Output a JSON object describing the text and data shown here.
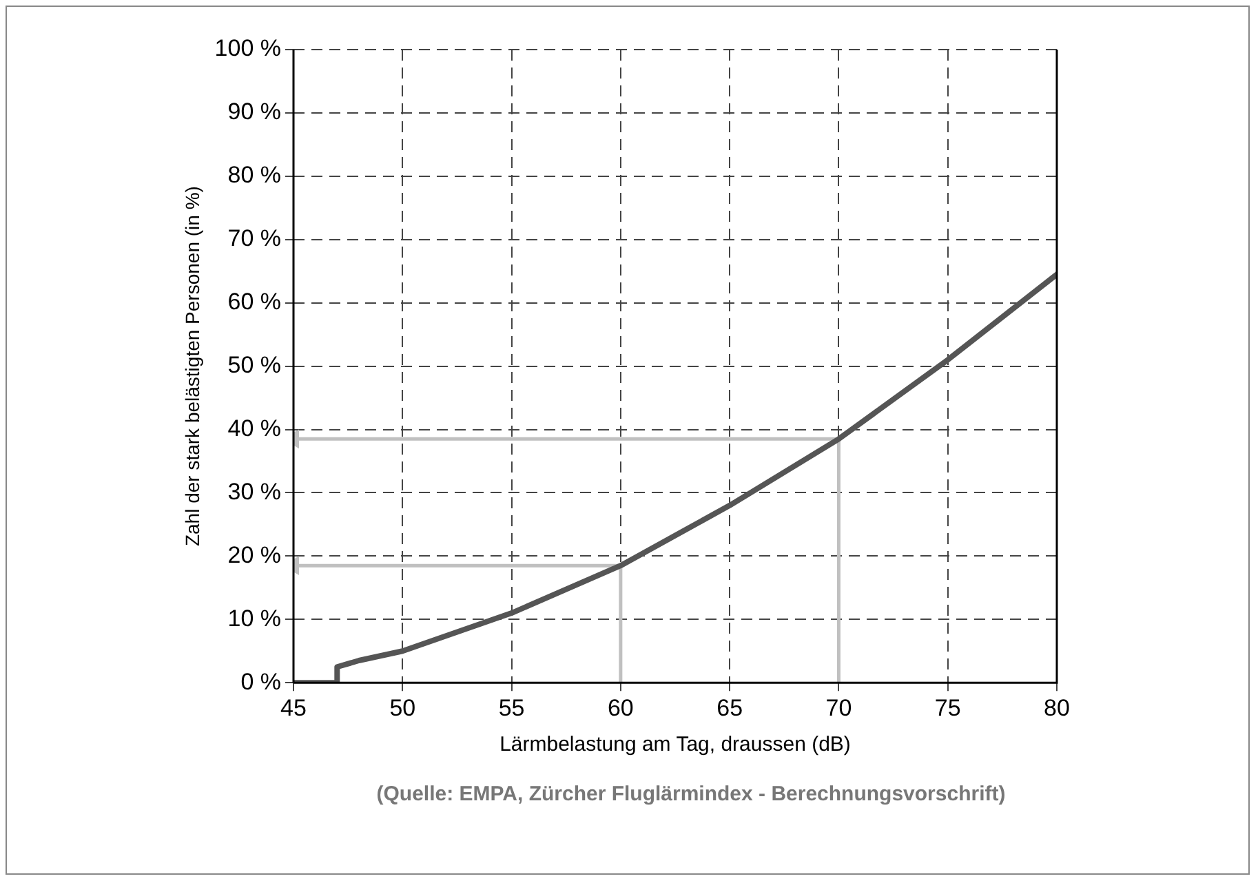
{
  "chart_data": {
    "type": "line",
    "xlabel": "Lärmbelastung am Tag, draussen (dB)",
    "ylabel": "Zahl der stark belästigten Personen (in %)",
    "annotations": [
      "(Quelle: EMPA, Zürcher Fluglärmindex - Berechnungsvorschrift)"
    ],
    "series": [
      {
        "color": "#555555",
        "x": [
          45,
          47,
          47,
          48,
          50,
          55,
          60,
          65,
          70,
          75,
          80
        ],
        "values": [
          0,
          0,
          2.5,
          3.5,
          5,
          11,
          18.5,
          28,
          38.5,
          51,
          64.5
        ]
      },
      {
        "color": "#c0c0c0",
        "x": [
          60,
          60,
          45
        ],
        "values": [
          0,
          18.5,
          18.5
        ]
      },
      {
        "color": "#c0c0c0",
        "x": [
          70,
          70,
          45
        ],
        "values": [
          0,
          38.5,
          38.5
        ]
      }
    ],
    "xlim": [
      45,
      80
    ],
    "xticks": [
      45,
      50,
      55,
      60,
      65,
      70,
      75,
      80
    ],
    "ylim": [
      0,
      100
    ],
    "yticks": [
      {
        "value": 0,
        "label": "0 %"
      },
      {
        "value": 10,
        "label": "10 %"
      },
      {
        "value": 20,
        "label": "20 %"
      },
      {
        "value": 30,
        "label": "30 %"
      },
      {
        "value": 40,
        "label": "40 %"
      },
      {
        "value": 50,
        "label": "50 %"
      },
      {
        "value": 60,
        "label": "60 %"
      },
      {
        "value": 70,
        "label": "70 %"
      },
      {
        "value": 80,
        "label": "80 %"
      },
      {
        "value": 90,
        "label": "90 %"
      },
      {
        "value": 100,
        "label": "100 %"
      }
    ],
    "grid": true,
    "marker": "none",
    "line_style": "solid",
    "legend": false
  }
}
